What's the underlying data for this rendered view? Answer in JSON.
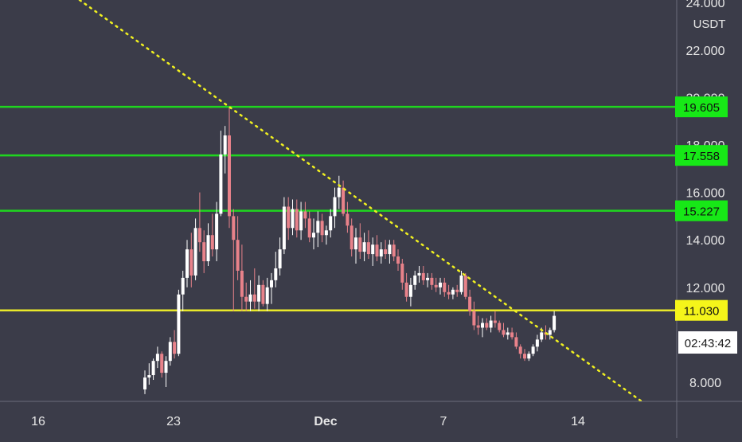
{
  "chart_data": {
    "type": "candlestick",
    "currency_label": "USDT",
    "y_ticks": [
      "8.000",
      "12.000",
      "14.000",
      "16.000",
      "18.000",
      "20.000",
      "22.000",
      "24.000"
    ],
    "x_ticks": [
      "16",
      "23",
      "Dec",
      "7",
      "14"
    ],
    "horizontal_levels": [
      {
        "value": 19.605,
        "label": "19.605",
        "color": "#1fd61f",
        "label_bg": "#17e817"
      },
      {
        "value": 17.558,
        "label": "17.558",
        "color": "#1fd61f",
        "label_bg": "#17e817"
      },
      {
        "value": 15.227,
        "label": "15.227",
        "color": "#1fd61f",
        "label_bg": "#17e817"
      },
      {
        "value": 11.03,
        "label": "11.030",
        "color": "#e8e82a",
        "label_bg": "#f5f51a"
      }
    ],
    "countdown": "02:43:42",
    "trendline": {
      "style": "dotted",
      "color": "#f0f020"
    },
    "colors": {
      "background": "#3b3c49",
      "up": "#ffffff",
      "down": "#e8828a",
      "axis_text": "#e6e6e6"
    },
    "candles_ohlc": [
      [
        7.7,
        8.5,
        7.5,
        8.2
      ],
      [
        8.2,
        8.8,
        7.9,
        8.3
      ],
      [
        8.3,
        9.0,
        8.1,
        8.9
      ],
      [
        8.9,
        9.5,
        8.6,
        9.2
      ],
      [
        9.2,
        9.3,
        8.2,
        8.4
      ],
      [
        8.4,
        9.1,
        7.8,
        8.9
      ],
      [
        8.9,
        9.9,
        8.7,
        9.7
      ],
      [
        9.7,
        10.2,
        9.0,
        9.2
      ],
      [
        9.2,
        11.9,
        9.1,
        11.7
      ],
      [
        11.7,
        12.7,
        11.0,
        12.4
      ],
      [
        12.4,
        14.0,
        12.0,
        13.6
      ],
      [
        13.6,
        14.3,
        12.0,
        12.5
      ],
      [
        12.5,
        14.9,
        12.3,
        14.5
      ],
      [
        14.5,
        16.0,
        13.5,
        13.9
      ],
      [
        13.9,
        14.4,
        12.6,
        13.1
      ],
      [
        13.1,
        14.7,
        12.9,
        14.2
      ],
      [
        14.2,
        15.1,
        13.3,
        13.6
      ],
      [
        13.6,
        15.6,
        13.1,
        15.1
      ],
      [
        15.1,
        18.6,
        15.0,
        17.6
      ],
      [
        17.6,
        18.8,
        16.8,
        18.4
      ],
      [
        18.4,
        19.6,
        14.5,
        15.0
      ],
      [
        15.0,
        15.3,
        11.0,
        14.0
      ],
      [
        14.0,
        15.0,
        12.3,
        12.7
      ],
      [
        12.7,
        13.8,
        11.0,
        11.6
      ],
      [
        11.6,
        12.2,
        11.0,
        11.4
      ],
      [
        11.4,
        12.3,
        11.0,
        11.7
      ],
      [
        11.7,
        12.8,
        11.1,
        11.4
      ],
      [
        11.4,
        12.5,
        11.0,
        12.1
      ],
      [
        12.1,
        12.3,
        11.2,
        11.3
      ],
      [
        11.3,
        12.4,
        11.0,
        12.0
      ],
      [
        12.0,
        12.6,
        11.3,
        12.3
      ],
      [
        12.3,
        13.5,
        12.0,
        12.8
      ],
      [
        12.8,
        14.1,
        12.5,
        13.6
      ],
      [
        13.6,
        15.8,
        13.4,
        15.4
      ],
      [
        15.4,
        15.8,
        14.0,
        14.5
      ],
      [
        14.5,
        15.7,
        14.2,
        15.3
      ],
      [
        15.3,
        15.7,
        14.1,
        14.4
      ],
      [
        14.4,
        15.6,
        14.0,
        15.2
      ],
      [
        15.2,
        15.6,
        14.5,
        14.9
      ],
      [
        14.9,
        15.2,
        13.9,
        14.1
      ],
      [
        14.1,
        14.9,
        13.6,
        14.3
      ],
      [
        14.3,
        15.2,
        13.7,
        14.8
      ],
      [
        14.8,
        15.1,
        13.9,
        14.2
      ],
      [
        14.2,
        14.6,
        13.8,
        14.4
      ],
      [
        14.4,
        15.3,
        14.1,
        15.0
      ],
      [
        15.0,
        16.2,
        14.5,
        15.8
      ],
      [
        15.8,
        16.7,
        15.3,
        16.2
      ],
      [
        16.2,
        16.5,
        15.0,
        15.1
      ],
      [
        15.1,
        15.6,
        14.3,
        14.6
      ],
      [
        14.6,
        14.9,
        13.3,
        13.6
      ],
      [
        13.6,
        14.5,
        13.0,
        14.1
      ],
      [
        14.1,
        14.7,
        13.2,
        13.5
      ],
      [
        13.5,
        14.3,
        13.1,
        13.9
      ],
      [
        13.9,
        14.4,
        13.2,
        13.4
      ],
      [
        13.4,
        14.1,
        12.9,
        13.8
      ],
      [
        13.8,
        14.2,
        13.1,
        13.3
      ],
      [
        13.3,
        13.9,
        13.0,
        13.6
      ],
      [
        13.6,
        14.0,
        13.2,
        13.4
      ],
      [
        13.4,
        14.0,
        13.0,
        13.8
      ],
      [
        13.8,
        14.0,
        13.1,
        13.3
      ],
      [
        13.3,
        13.6,
        12.7,
        13.0
      ],
      [
        13.0,
        13.2,
        11.9,
        12.2
      ],
      [
        12.2,
        12.6,
        11.4,
        11.6
      ],
      [
        11.6,
        12.4,
        11.2,
        12.1
      ],
      [
        12.1,
        12.7,
        11.9,
        12.5
      ],
      [
        12.5,
        12.9,
        12.2,
        12.6
      ],
      [
        12.6,
        12.9,
        12.1,
        12.3
      ],
      [
        12.3,
        12.6,
        12.0,
        12.4
      ],
      [
        12.4,
        12.6,
        11.9,
        12.1
      ],
      [
        12.1,
        12.4,
        11.8,
        12.0
      ],
      [
        12.0,
        12.4,
        11.7,
        12.2
      ],
      [
        12.2,
        12.4,
        11.6,
        11.8
      ],
      [
        11.8,
        12.1,
        11.5,
        11.7
      ],
      [
        11.7,
        12.0,
        11.5,
        11.9
      ],
      [
        11.9,
        12.1,
        11.6,
        11.8
      ],
      [
        11.8,
        12.7,
        11.7,
        12.5
      ],
      [
        12.5,
        12.6,
        11.5,
        11.6
      ],
      [
        11.6,
        11.9,
        10.8,
        11.0
      ],
      [
        11.0,
        11.4,
        10.2,
        10.4
      ],
      [
        10.4,
        10.8,
        10.0,
        10.3
      ],
      [
        10.3,
        10.7,
        9.9,
        10.5
      ],
      [
        10.5,
        10.7,
        10.2,
        10.3
      ],
      [
        10.3,
        10.8,
        10.1,
        10.6
      ],
      [
        10.6,
        11.0,
        10.3,
        10.5
      ],
      [
        10.5,
        10.6,
        10.1,
        10.2
      ],
      [
        10.2,
        10.5,
        9.9,
        10.0
      ],
      [
        10.0,
        10.3,
        9.8,
        10.1
      ],
      [
        10.1,
        10.3,
        9.8,
        9.9
      ],
      [
        9.9,
        10.1,
        9.4,
        9.5
      ],
      [
        9.5,
        9.6,
        9.0,
        9.2
      ],
      [
        9.2,
        9.4,
        8.9,
        9.0
      ],
      [
        9.0,
        9.3,
        8.9,
        9.2
      ],
      [
        9.2,
        9.6,
        9.1,
        9.5
      ],
      [
        9.5,
        10.0,
        9.3,
        9.8
      ],
      [
        9.8,
        10.3,
        9.7,
        10.1
      ],
      [
        10.1,
        10.4,
        9.8,
        10.0
      ],
      [
        10.0,
        10.3,
        9.8,
        10.2
      ],
      [
        10.2,
        11.0,
        10.1,
        10.8
      ]
    ]
  }
}
